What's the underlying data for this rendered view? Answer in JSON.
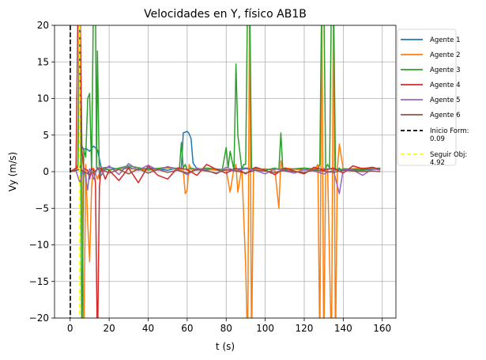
{
  "chart_data": {
    "type": "line",
    "title": "Velocidades en Y, físico AB1B",
    "xlabel": "t (s)",
    "ylabel": "Vy (m/s)",
    "xlim": [
      -8,
      167
    ],
    "ylim": [
      -20,
      20
    ],
    "xticks": [
      0,
      20,
      40,
      60,
      80,
      100,
      120,
      140,
      160
    ],
    "yticks": [
      -20,
      -15,
      -10,
      -5,
      0,
      5,
      10,
      15,
      20
    ],
    "xtick_labels": [
      "0",
      "20",
      "40",
      "60",
      "80",
      "100",
      "120",
      "140",
      "160"
    ],
    "ytick_labels": [
      "−20",
      "−15",
      "−10",
      "−5",
      "0",
      "5",
      "10",
      "15",
      "20"
    ],
    "grid": true,
    "legend_position": "outside-right",
    "series": [
      {
        "name": "Agente 1",
        "color": "#1f77b4",
        "x": [
          0,
          5,
          6,
          7,
          8,
          10,
          12,
          14,
          16,
          20,
          25,
          30,
          35,
          40,
          45,
          50,
          55,
          57,
          58,
          60,
          61,
          62,
          63,
          65,
          70,
          80,
          90,
          100,
          110,
          120,
          130,
          140,
          150,
          159
        ],
        "y": [
          0,
          0.3,
          3.5,
          3,
          3.2,
          2.8,
          3.5,
          3.0,
          0.5,
          0.6,
          0.3,
          0.6,
          0.2,
          0.5,
          0.4,
          0.2,
          0.5,
          0.5,
          5.3,
          5.5,
          5.2,
          4.5,
          1.2,
          0.4,
          0.3,
          0.2,
          0.5,
          0.3,
          0.4,
          0.3,
          0.4,
          0.3,
          0.2,
          0.4
        ]
      },
      {
        "name": "Agente 2",
        "color": "#ff7f0e",
        "x": [
          0,
          4,
          5,
          6,
          7,
          8,
          9,
          10,
          11,
          12,
          14,
          16,
          20,
          30,
          40,
          50,
          55,
          58,
          59,
          60,
          61,
          62,
          65,
          70,
          75,
          80,
          82,
          84,
          85,
          86,
          88,
          90,
          91,
          92,
          93,
          94,
          96,
          100,
          105,
          107,
          108,
          109,
          110,
          120,
          125,
          127,
          128,
          129,
          130,
          131,
          132,
          134,
          135,
          136,
          137,
          138,
          140,
          150,
          159
        ],
        "y": [
          0,
          0.5,
          25,
          2,
          -25,
          1,
          -7,
          -12.3,
          -2,
          0.5,
          -1,
          0.5,
          0.3,
          0.4,
          0.2,
          0.5,
          0.3,
          0.2,
          -3,
          -2.5,
          1,
          0.3,
          0.2,
          0.4,
          0.2,
          0.3,
          -2.8,
          0.5,
          1,
          -2.8,
          0.6,
          -13,
          -25,
          25,
          -25,
          0.5,
          0.3,
          0.4,
          0.2,
          -5,
          1.5,
          0.3,
          0.5,
          0.2,
          0.3,
          1,
          -25,
          25,
          -25,
          0.5,
          0.3,
          -25,
          25,
          -25,
          0.3,
          3.8,
          0.3,
          0.5,
          0.4
        ]
      },
      {
        "name": "Agente 3",
        "color": "#2ca02c",
        "x": [
          0,
          3,
          4,
          5,
          6,
          7,
          8,
          9,
          10,
          11,
          12,
          13,
          13.5,
          14,
          15,
          16,
          20,
          30,
          40,
          50,
          56,
          57,
          58,
          59,
          60,
          62,
          65,
          70,
          78,
          80,
          81,
          82,
          84,
          85,
          86,
          88,
          89,
          90,
          91,
          92,
          93,
          94,
          96,
          100,
          105,
          107,
          108,
          109,
          110,
          120,
          127,
          128,
          129,
          130,
          131,
          132,
          133,
          134,
          135,
          136,
          137,
          138,
          139,
          140,
          150,
          159
        ],
        "y": [
          0,
          0.2,
          1,
          25,
          -25,
          3,
          2,
          10,
          10.7,
          0,
          25,
          25,
          0.5,
          16.5,
          -1,
          0.5,
          0.2,
          0.8,
          0.3,
          0.6,
          0.4,
          4,
          0.5,
          1,
          0.2,
          0.5,
          0.3,
          0.5,
          0.3,
          3.3,
          0.5,
          2.8,
          0.2,
          14.7,
          5,
          0.3,
          1,
          1,
          25,
          25,
          0.5,
          0.3,
          0.5,
          0.2,
          0.5,
          0.3,
          5.3,
          0.5,
          0.3,
          0.5,
          0.3,
          1,
          25,
          25,
          0.5,
          1,
          0.5,
          25,
          25,
          0.2,
          0.3,
          0.5,
          0.2,
          0.4,
          0.3,
          0.5
        ]
      },
      {
        "name": "Agente 4",
        "color": "#d62728",
        "x": [
          0,
          3,
          4,
          5,
          6,
          7,
          8,
          9,
          10,
          11,
          12,
          13,
          14,
          15,
          16,
          18,
          20,
          25,
          30,
          35,
          40,
          45,
          50,
          55,
          60,
          65,
          70,
          75,
          80,
          85,
          90,
          95,
          100,
          105,
          110,
          115,
          120,
          125,
          130,
          135,
          140,
          145,
          150,
          155,
          159
        ],
        "y": [
          0,
          0.5,
          22,
          25,
          3,
          0.5,
          0.3,
          0.2,
          -1,
          0.5,
          0.2,
          -1.5,
          -25,
          -2,
          0.5,
          -1,
          0.2,
          -1.2,
          0.5,
          -1.5,
          0.8,
          -0.5,
          -1,
          0.5,
          0.3,
          -0.5,
          1,
          0.3,
          -0.2,
          0.5,
          -0.3,
          0.6,
          0.2,
          -0.4,
          0.5,
          0.1,
          -0.3,
          0.6,
          0.2,
          0.5,
          -0.2,
          0.8,
          0.4,
          0.6,
          0.3
        ]
      },
      {
        "name": "Agente 5",
        "color": "#9467bd",
        "x": [
          0,
          3,
          5,
          7,
          9,
          10,
          12,
          14,
          16,
          18,
          20,
          25,
          30,
          35,
          40,
          45,
          50,
          55,
          60,
          65,
          70,
          75,
          80,
          85,
          90,
          95,
          100,
          105,
          110,
          115,
          120,
          125,
          130,
          135,
          138,
          140,
          145,
          150,
          155,
          159
        ],
        "y": [
          0,
          0.1,
          -1.5,
          0.5,
          -2.5,
          0.4,
          -1,
          0.6,
          -0.5,
          0.3,
          0.8,
          -0.4,
          1.1,
          0.2,
          0.9,
          0.2,
          0.7,
          0.3,
          -0.4,
          0.5,
          0.2,
          -0.3,
          0.6,
          0.1,
          0.4,
          0.2,
          -0.3,
          0.4,
          0.1,
          -0.2,
          0.3,
          0.1,
          -0.3,
          0.2,
          -3,
          0.3,
          0.2,
          -0.5,
          0.4,
          0.2
        ]
      },
      {
        "name": "Agente 6",
        "color": "#8c564b",
        "x": [
          0,
          5,
          10,
          15,
          20,
          25,
          30,
          35,
          40,
          45,
          50,
          55,
          60,
          65,
          70,
          75,
          80,
          85,
          90,
          95,
          100,
          105,
          110,
          115,
          120,
          125,
          130,
          135,
          140,
          145,
          150,
          155,
          159
        ],
        "y": [
          0,
          0.3,
          -0.4,
          0.5,
          -0.2,
          0.3,
          -0.3,
          0.4,
          -0.2,
          0.3,
          -0.1,
          0.2,
          -0.2,
          0.3,
          0.1,
          -0.2,
          0.3,
          0.1,
          -0.2,
          0.2,
          0.1,
          -0.1,
          0.2,
          0.0,
          -0.1,
          0.2,
          0.1,
          -0.1,
          0.2,
          0.1,
          0.0,
          0.1,
          0.0
        ]
      }
    ],
    "vlines": [
      {
        "name": "Inicio Form: 0.09",
        "x": 0.09,
        "color": "#000000",
        "style": "dashed"
      },
      {
        "name": "Seguir Obj: 4.92",
        "x": 4.92,
        "color": "#ffff00",
        "style": "dashed"
      }
    ],
    "legend": [
      "Agente 1",
      "Agente 2",
      "Agente 3",
      "Agente 4",
      "Agente 5",
      "Agente 6",
      [
        "Inicio Form:",
        "0.09"
      ],
      [
        "Seguir Obj:",
        "4.92"
      ]
    ]
  }
}
